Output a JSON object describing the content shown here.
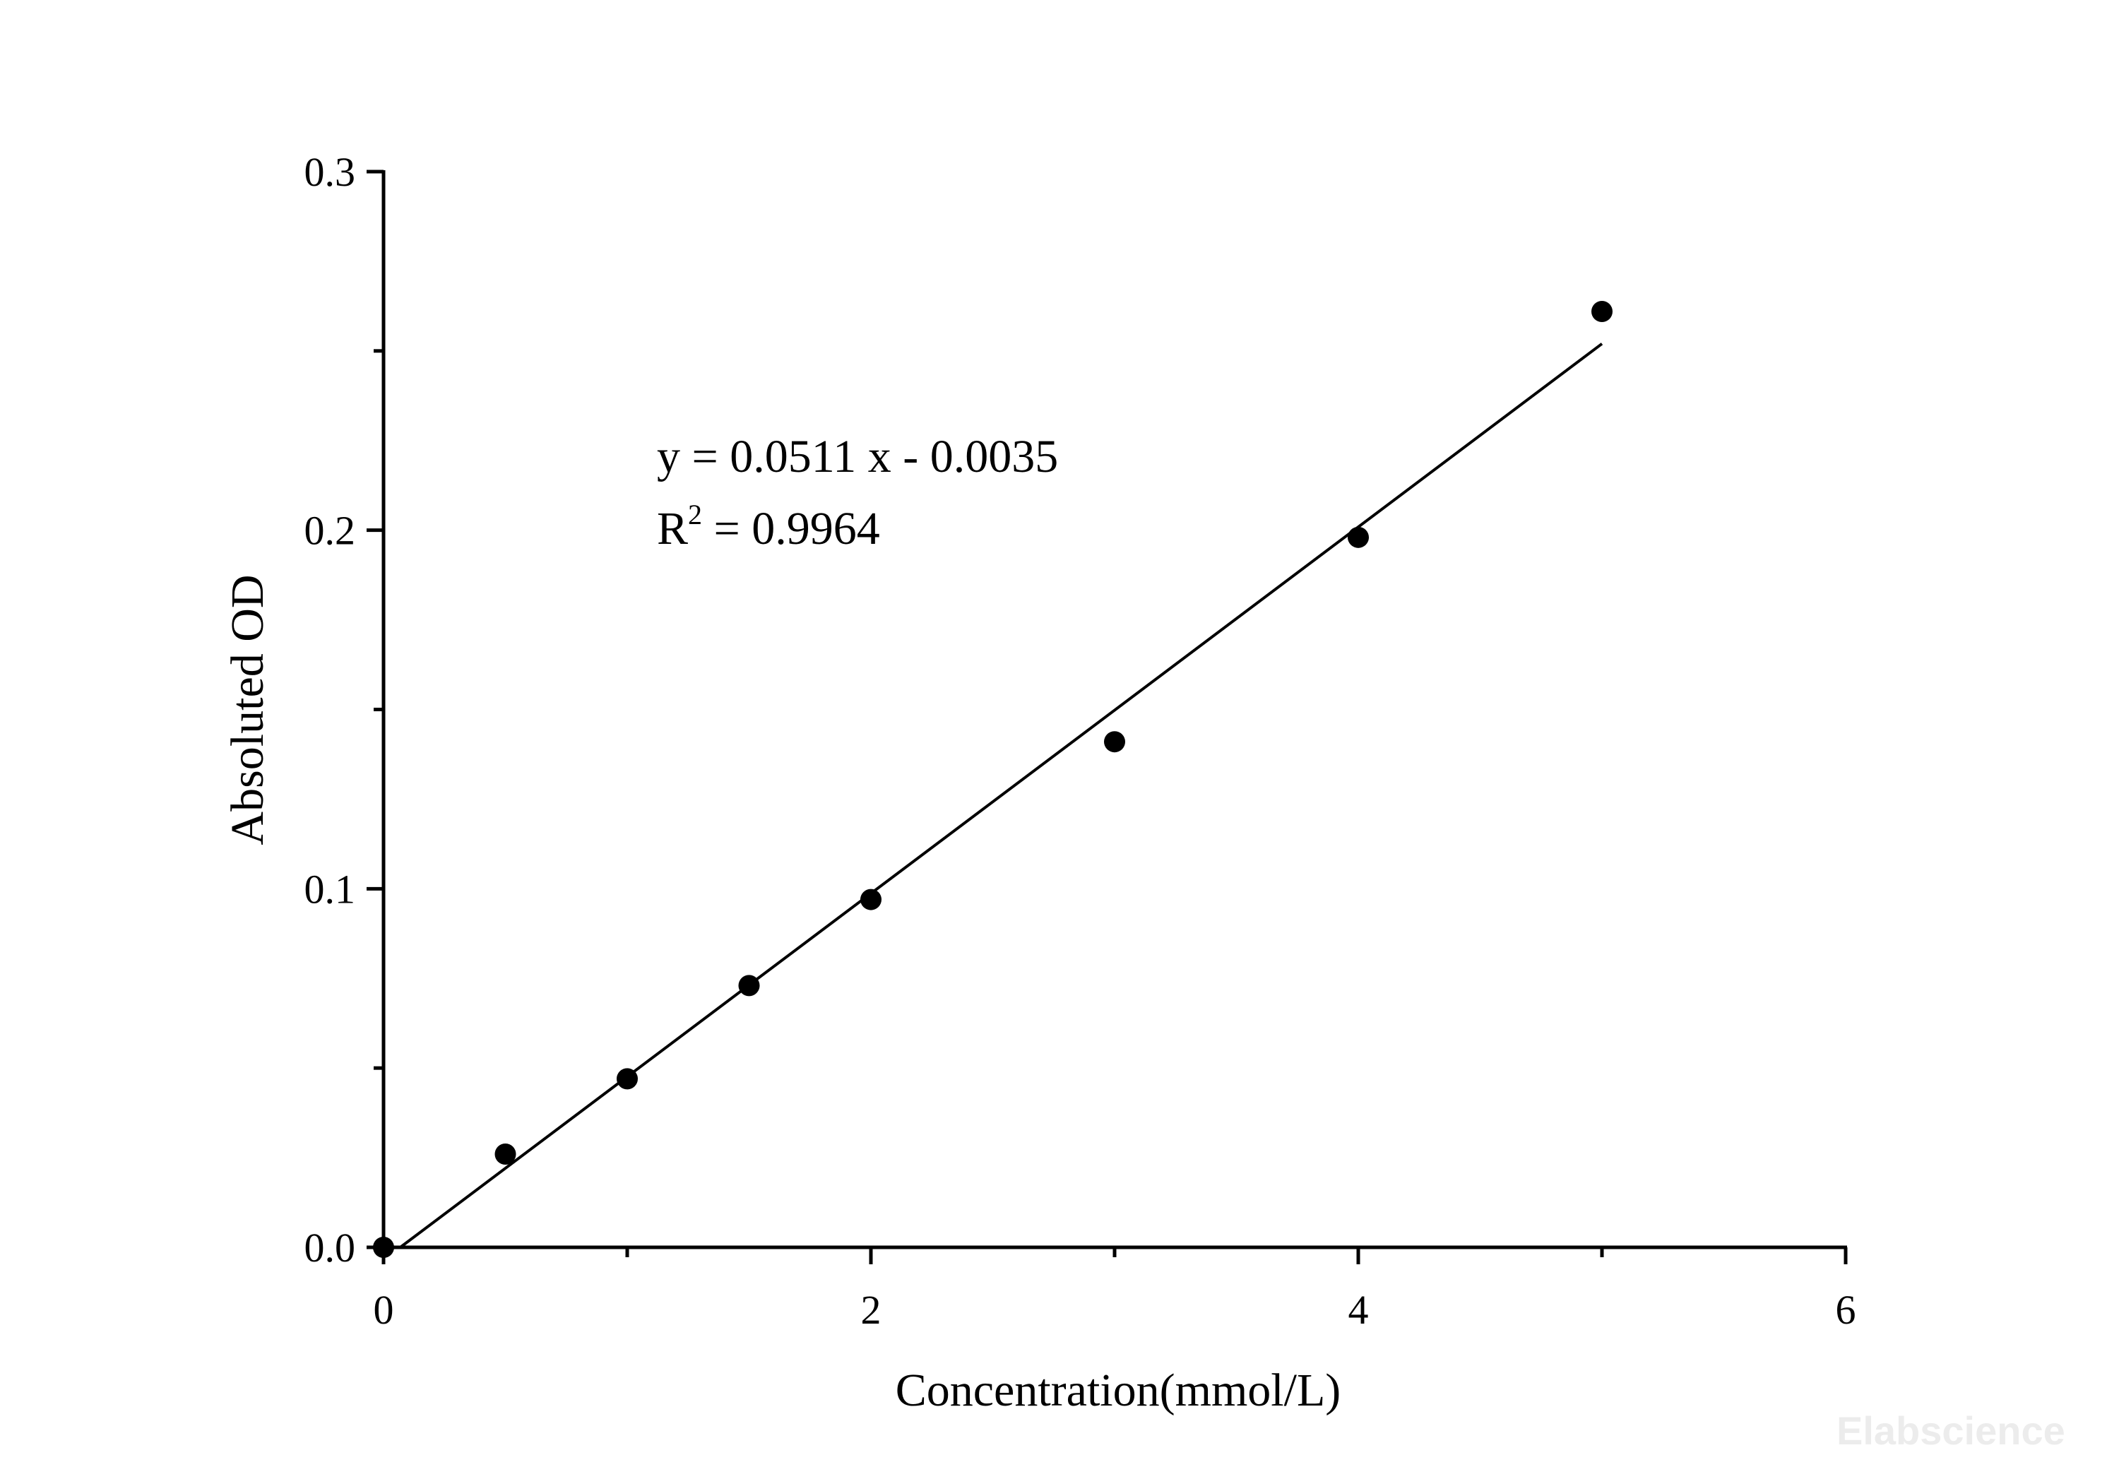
{
  "chart_data": {
    "type": "scatter",
    "xlabel": "Concentration(mmol/L)",
    "ylabel": "Absoluted OD",
    "xlim": [
      0,
      6
    ],
    "ylim": [
      0,
      0.3
    ],
    "x_ticks": [
      "0",
      "2",
      "4",
      "6"
    ],
    "x_tick_values": [
      0,
      2,
      4,
      6
    ],
    "x_minor_tick_values": [
      1,
      3,
      5
    ],
    "y_ticks": [
      "0.0",
      "0.1",
      "0.2",
      "0.3"
    ],
    "y_tick_values": [
      0,
      0.1,
      0.2,
      0.3
    ],
    "y_minor_tick_values": [
      0.05,
      0.15,
      0.25
    ],
    "grid": false,
    "points": {
      "x": [
        0,
        0.5,
        1,
        1.5,
        2,
        3,
        4,
        5
      ],
      "y": [
        0.0,
        0.026,
        0.047,
        0.073,
        0.097,
        0.141,
        0.198,
        0.261
      ]
    },
    "fit_line": {
      "slope": 0.0511,
      "intercept": -0.0035,
      "x_range": [
        0.07,
        5
      ]
    },
    "equation": {
      "line1": "y = 0.0511 x - 0.0035",
      "r2_prefix": "R",
      "r2_superscript": "2",
      "r2_suffix": " = 0.9964"
    }
  },
  "watermark": "Elabscience"
}
